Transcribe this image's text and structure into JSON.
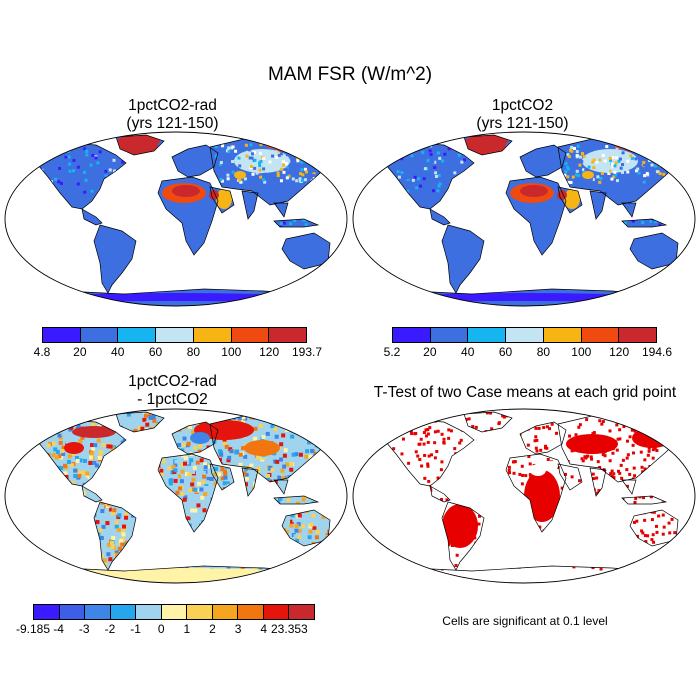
{
  "figure": {
    "title": "MAM FSR (W/m^2)",
    "note": "Cells are significant at 0.1 level"
  },
  "panels": [
    {
      "title_line1": "1pctCO2-rad",
      "title_line2": "(yrs 121-150)",
      "ocean_color": "#ffffff",
      "land_base_color": "#3d6fe0",
      "colorbar": {
        "colors": [
          "#3a1bff",
          "#3d6fe0",
          "#17b5ef",
          "#c2e4f3",
          "#f6b514",
          "#ef4a0f",
          "#c9282d"
        ],
        "labels": [
          "4.8",
          "20",
          "40",
          "60",
          "80",
          "100",
          "120",
          "193.7"
        ]
      }
    },
    {
      "title_line1": "1pctCO2",
      "title_line2": "(yrs 121-150)",
      "ocean_color": "#ffffff",
      "land_base_color": "#3d6fe0",
      "colorbar": {
        "colors": [
          "#3a1bff",
          "#3d6fe0",
          "#17b5ef",
          "#c2e4f3",
          "#f6b514",
          "#ef4a0f",
          "#c9282d"
        ],
        "labels": [
          "5.2",
          "20",
          "40",
          "60",
          "80",
          "100",
          "120",
          "194.6"
        ]
      }
    },
    {
      "title_line1": "1pctCO2-rad",
      "title_line2": "- 1pctCO2",
      "ocean_color": "#ffffff",
      "land_base_color": "#9fd3ee",
      "colorbar": {
        "colors": [
          "#3a1bff",
          "#3d5fe8",
          "#3d86e8",
          "#26a6ec",
          "#9fd3ee",
          "#fff3a8",
          "#f9d255",
          "#f6a520",
          "#f2760f",
          "#e4150c",
          "#c9282d"
        ],
        "labels": [
          "-9.185",
          "-4",
          "-3",
          "-2",
          "-1",
          "0",
          "1",
          "2",
          "3",
          "4",
          "23.353"
        ]
      }
    },
    {
      "title_line1": "T-Test of two Case means at each grid point",
      "ocean_color": "#ffffff",
      "land_base_color": "#e60000"
    }
  ]
}
